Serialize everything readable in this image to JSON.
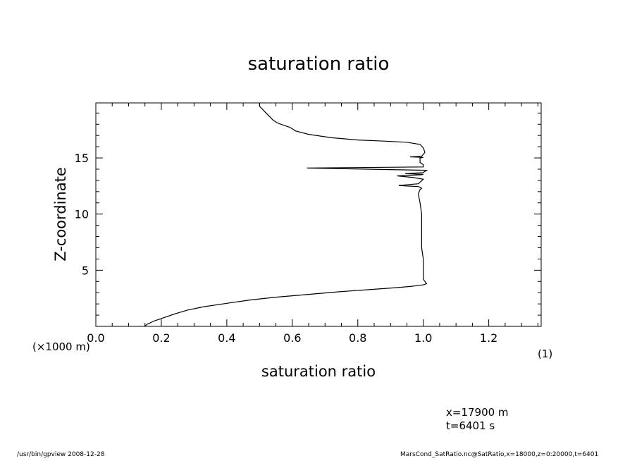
{
  "chart_data": {
    "type": "line",
    "title": "saturation ratio",
    "xlabel": "saturation ratio",
    "ylabel": "Z-coordinate",
    "y_unit_note": "(×1000 m)",
    "x_unit_note": "(1)",
    "xlim": [
      0.0,
      1.36
    ],
    "ylim": [
      0.0,
      19.9
    ],
    "x_ticks": [
      0.0,
      0.2,
      0.4,
      0.6,
      0.8,
      1.0,
      1.2
    ],
    "x_tick_labels": [
      "0.0",
      "0.2",
      "0.4",
      "0.6",
      "0.8",
      "1.0",
      "1.2"
    ],
    "y_ticks": [
      5,
      10,
      15
    ],
    "y_tick_labels": [
      "5",
      "10",
      "15"
    ],
    "grid": false,
    "series": [
      {
        "x": [
          0.148,
          0.158,
          0.18,
          0.21,
          0.24,
          0.28,
          0.33,
          0.4,
          0.47,
          0.55,
          0.65,
          0.75,
          0.85,
          0.92,
          0.96,
          0.98,
          1.0,
          1.01,
          1.0,
          1.0,
          1.0,
          0.995,
          0.995,
          0.995,
          0.995,
          0.99,
          0.985,
          0.99,
          0.995,
          0.99,
          0.985,
          0.95,
          0.925,
          0.985,
          1.0,
          0.97,
          0.92,
          0.995,
          1.0,
          0.945,
          1.0,
          1.01,
          0.645,
          1.0,
          1.0,
          0.99,
          0.99,
          0.99,
          1.0,
          0.96,
          0.995,
          1.005,
          1.0,
          0.99,
          0.95,
          0.88,
          0.8,
          0.72,
          0.65,
          0.61,
          0.6,
          0.59,
          0.58,
          0.57,
          0.56,
          0.55,
          0.54,
          0.53,
          0.52,
          0.51,
          0.5,
          0.5
        ],
        "y": [
          0.0,
          0.2,
          0.5,
          0.8,
          1.1,
          1.45,
          1.75,
          2.05,
          2.35,
          2.6,
          2.85,
          3.1,
          3.3,
          3.45,
          3.55,
          3.62,
          3.7,
          3.8,
          4.2,
          5.0,
          6.0,
          7.0,
          8.0,
          9.0,
          10.0,
          11.0,
          11.8,
          12.2,
          12.3,
          12.4,
          12.45,
          12.5,
          12.55,
          12.7,
          13.1,
          13.25,
          13.4,
          13.5,
          13.55,
          13.6,
          13.7,
          13.9,
          14.1,
          14.2,
          14.4,
          14.6,
          14.8,
          15.0,
          15.05,
          15.1,
          15.15,
          15.5,
          15.9,
          16.2,
          16.4,
          16.5,
          16.6,
          16.8,
          17.1,
          17.4,
          17.6,
          17.75,
          17.85,
          17.95,
          18.05,
          18.2,
          18.4,
          18.7,
          19.0,
          19.3,
          19.6,
          19.9
        ]
      }
    ]
  },
  "info": {
    "line1": "x=17900 m",
    "line2": "t=6401 s"
  },
  "footer": {
    "left": "/usr/bin/gpview   2008-12-28",
    "right": "MarsCond_SatRatio.nc@SatRatio,x=18000,z=0:20000,t=6401"
  }
}
